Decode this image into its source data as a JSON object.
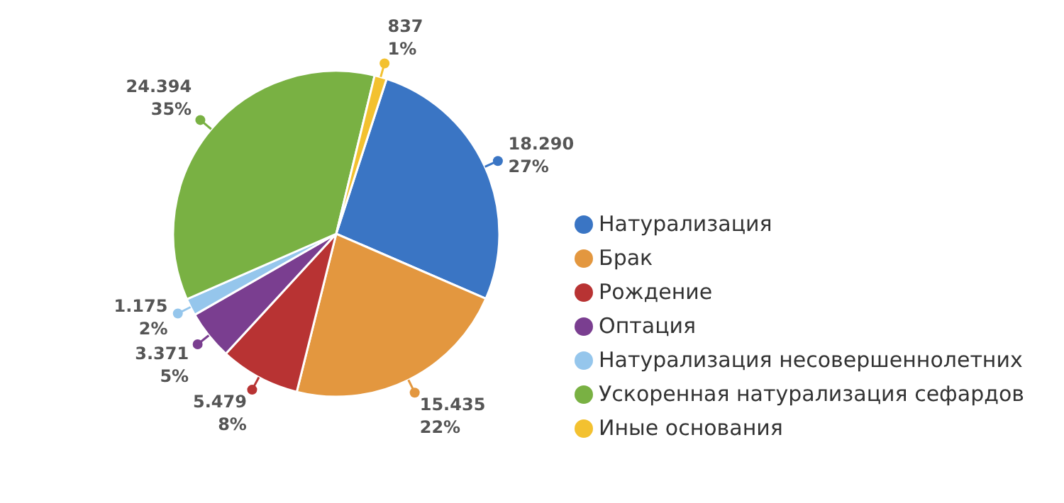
{
  "chart_data": {
    "type": "pie",
    "categories": [
      "Натурализация",
      "Брак",
      "Рождение",
      "Оптация",
      "Натурализация несовершеннолетних",
      "Ускоренная натурализация сефардов",
      "Иные основания"
    ],
    "values": [
      18290,
      15435,
      5479,
      3371,
      1175,
      24394,
      837
    ],
    "value_labels": [
      "18.290\n27%",
      "15.435\n22%",
      "5.479\n8%",
      "3.371\n5%",
      "1.175\n2%",
      "24.394\n35%",
      "837\n1%"
    ],
    "colors": [
      "#3a75c4",
      "#e3973f",
      "#b83333",
      "#7a3e90",
      "#95c6ec",
      "#79b143",
      "#f3c130"
    ],
    "legend": "right"
  }
}
